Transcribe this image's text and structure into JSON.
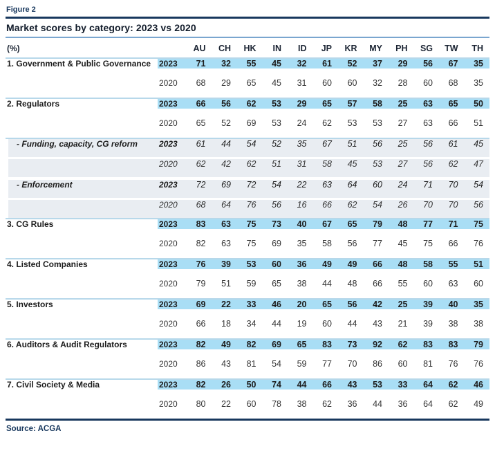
{
  "figure_label": "Figure 2",
  "source": "Source: ACGA",
  "colors": {
    "navy": "#17375d",
    "band-blue": "#a9def5",
    "band-gray": "#e9edf2",
    "divider": "#b7d8ea",
    "rule-blue": "#7aa6cf"
  },
  "chart_data": {
    "type": "table",
    "title": "Market scores by category: 2023 vs 2020",
    "unit_label": "(%)",
    "columns": [
      "AU",
      "CH",
      "HK",
      "IN",
      "ID",
      "JP",
      "KR",
      "MY",
      "PH",
      "SG",
      "TW",
      "TH"
    ],
    "year_labels": [
      "2023",
      "2020"
    ],
    "rows": [
      {
        "label": "1. Government & Public Governance",
        "sub": false,
        "y2023": [
          71,
          32,
          55,
          45,
          32,
          61,
          52,
          37,
          29,
          56,
          67,
          35
        ],
        "y2020": [
          68,
          29,
          65,
          45,
          31,
          60,
          60,
          32,
          28,
          60,
          68,
          35
        ]
      },
      {
        "label": "2. Regulators",
        "sub": false,
        "y2023": [
          66,
          56,
          62,
          53,
          29,
          65,
          57,
          58,
          25,
          63,
          65,
          50
        ],
        "y2020": [
          65,
          52,
          69,
          53,
          24,
          62,
          53,
          53,
          27,
          63,
          66,
          51
        ]
      },
      {
        "label": "- Funding, capacity, CG reform",
        "sub": true,
        "y2023": [
          61,
          44,
          54,
          52,
          35,
          67,
          51,
          56,
          25,
          56,
          61,
          45
        ],
        "y2020": [
          62,
          42,
          62,
          51,
          31,
          58,
          45,
          53,
          27,
          56,
          62,
          47
        ]
      },
      {
        "label": "- Enforcement",
        "sub": true,
        "y2023": [
          72,
          69,
          72,
          54,
          22,
          63,
          64,
          60,
          24,
          71,
          70,
          54
        ],
        "y2020": [
          68,
          64,
          76,
          56,
          16,
          66,
          62,
          54,
          26,
          70,
          70,
          56
        ]
      },
      {
        "label": "3. CG Rules",
        "sub": false,
        "y2023": [
          83,
          63,
          75,
          73,
          40,
          67,
          65,
          79,
          48,
          77,
          71,
          75
        ],
        "y2020": [
          82,
          63,
          75,
          69,
          35,
          58,
          56,
          77,
          45,
          75,
          66,
          76
        ]
      },
      {
        "label": "4. Listed Companies",
        "sub": false,
        "y2023": [
          76,
          39,
          53,
          60,
          36,
          49,
          49,
          66,
          48,
          58,
          55,
          51
        ],
        "y2020": [
          79,
          51,
          59,
          65,
          38,
          44,
          48,
          66,
          55,
          60,
          63,
          60
        ]
      },
      {
        "label": "5. Investors",
        "sub": false,
        "y2023": [
          69,
          22,
          33,
          46,
          20,
          65,
          56,
          42,
          25,
          39,
          40,
          35
        ],
        "y2020": [
          66,
          18,
          34,
          44,
          19,
          60,
          44,
          43,
          21,
          39,
          38,
          38
        ]
      },
      {
        "label": "6. Auditors & Audit Regulators",
        "sub": false,
        "y2023": [
          82,
          49,
          82,
          69,
          65,
          83,
          73,
          92,
          62,
          83,
          83,
          79
        ],
        "y2020": [
          86,
          43,
          81,
          54,
          59,
          77,
          70,
          86,
          60,
          81,
          76,
          76
        ]
      },
      {
        "label": "7. Civil Society & Media",
        "sub": false,
        "y2023": [
          82,
          26,
          50,
          74,
          44,
          66,
          43,
          53,
          33,
          64,
          62,
          46
        ],
        "y2020": [
          80,
          22,
          60,
          78,
          38,
          62,
          36,
          44,
          36,
          64,
          62,
          49
        ]
      }
    ]
  }
}
